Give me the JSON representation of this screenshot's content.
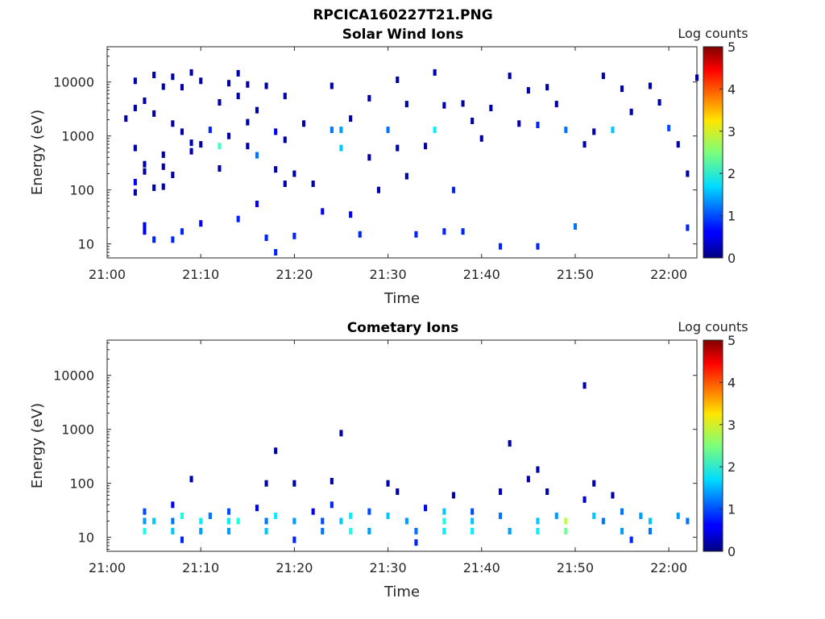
{
  "figure_title": "RPCICA160227T21.PNG",
  "colors": {
    "colormap": "jet",
    "background": "#ffffff",
    "axis": "#262626"
  },
  "chart_data": [
    {
      "type": "heatmap",
      "title": "Solar Wind Ions",
      "xlabel": "Time",
      "ylabel": "Energy (eV)",
      "yscale": "log",
      "xlim": [
        "21:00",
        "22:03"
      ],
      "ylim": [
        5.5,
        45000
      ],
      "x_ticks": [
        "21:00",
        "21:10",
        "21:20",
        "21:30",
        "21:40",
        "21:50",
        "22:00"
      ],
      "y_ticks": [
        "10",
        "100",
        "1000",
        "10000"
      ],
      "colorbar": {
        "label": "Log counts",
        "range": [
          0,
          5
        ],
        "ticks": [
          "0",
          "1",
          "2",
          "3",
          "4",
          "5"
        ]
      },
      "grid": false,
      "cells": [
        {
          "t": "21:02",
          "e": 2100,
          "v": 0.2
        },
        {
          "t": "21:03",
          "e": 10500,
          "v": 0.2
        },
        {
          "t": "21:03",
          "e": 3300,
          "v": 0.2
        },
        {
          "t": "21:03",
          "e": 600,
          "v": 0.2
        },
        {
          "t": "21:03",
          "e": 140,
          "v": 0.6
        },
        {
          "t": "21:03",
          "e": 90,
          "v": 0.2
        },
        {
          "t": "21:04",
          "e": 4500,
          "v": 0.2
        },
        {
          "t": "21:04",
          "e": 300,
          "v": 0.2
        },
        {
          "t": "21:04",
          "e": 220,
          "v": 0.2
        },
        {
          "t": "21:04",
          "e": 22,
          "v": 0.6
        },
        {
          "t": "21:04",
          "e": 17,
          "v": 0.6
        },
        {
          "t": "21:05",
          "e": 13500,
          "v": 0.2
        },
        {
          "t": "21:05",
          "e": 12,
          "v": 0.8
        },
        {
          "t": "21:05",
          "e": 2600,
          "v": 0.2
        },
        {
          "t": "21:05",
          "e": 110,
          "v": 0.2
        },
        {
          "t": "21:06",
          "e": 8200,
          "v": 0.2
        },
        {
          "t": "21:06",
          "e": 450,
          "v": 0.2
        },
        {
          "t": "21:06",
          "e": 270,
          "v": 0.2
        },
        {
          "t": "21:06",
          "e": 115,
          "v": 0.2
        },
        {
          "t": "21:07",
          "e": 12500,
          "v": 0.2
        },
        {
          "t": "21:07",
          "e": 1700,
          "v": 0.2
        },
        {
          "t": "21:07",
          "e": 190,
          "v": 0.2
        },
        {
          "t": "21:07",
          "e": 12,
          "v": 0.8
        },
        {
          "t": "21:08",
          "e": 8000,
          "v": 0.2
        },
        {
          "t": "21:08",
          "e": 1200,
          "v": 0.2
        },
        {
          "t": "21:08",
          "e": 17,
          "v": 0.8
        },
        {
          "t": "21:09",
          "e": 15000,
          "v": 0.2
        },
        {
          "t": "21:09",
          "e": 750,
          "v": 0.2
        },
        {
          "t": "21:09",
          "e": 520,
          "v": 0.2
        },
        {
          "t": "21:10",
          "e": 10500,
          "v": 0.2
        },
        {
          "t": "21:10",
          "e": 700,
          "v": 0.2
        },
        {
          "t": "21:10",
          "e": 24,
          "v": 0.6
        },
        {
          "t": "21:11",
          "e": 1300,
          "v": 0.8
        },
        {
          "t": "21:12",
          "e": 4200,
          "v": 0.2
        },
        {
          "t": "21:12",
          "e": 650,
          "v": 2.2
        },
        {
          "t": "21:12",
          "e": 250,
          "v": 0.2
        },
        {
          "t": "21:13",
          "e": 9500,
          "v": 0.2
        },
        {
          "t": "21:13",
          "e": 1000,
          "v": 0.2
        },
        {
          "t": "21:14",
          "e": 14500,
          "v": 0.2
        },
        {
          "t": "21:14",
          "e": 5500,
          "v": 0.2
        },
        {
          "t": "21:14",
          "e": 29,
          "v": 0.8
        },
        {
          "t": "21:15",
          "e": 1800,
          "v": 0.2
        },
        {
          "t": "21:15",
          "e": 9000,
          "v": 0.2
        },
        {
          "t": "21:15",
          "e": 650,
          "v": 0.2
        },
        {
          "t": "21:16",
          "e": 3000,
          "v": 0.2
        },
        {
          "t": "21:16",
          "e": 440,
          "v": 1.2
        },
        {
          "t": "21:16",
          "e": 55,
          "v": 0.6
        },
        {
          "t": "21:17",
          "e": 8500,
          "v": 0.2
        },
        {
          "t": "21:17",
          "e": 13,
          "v": 0.8
        },
        {
          "t": "21:18",
          "e": 1200,
          "v": 0.6
        },
        {
          "t": "21:18",
          "e": 7,
          "v": 0.8
        },
        {
          "t": "21:18",
          "e": 240,
          "v": 0.2
        },
        {
          "t": "21:19",
          "e": 5500,
          "v": 0.2
        },
        {
          "t": "21:19",
          "e": 850,
          "v": 0.2
        },
        {
          "t": "21:19",
          "e": 130,
          "v": 0.2
        },
        {
          "t": "21:20",
          "e": 14,
          "v": 0.8
        },
        {
          "t": "21:20",
          "e": 200,
          "v": 0.2
        },
        {
          "t": "21:21",
          "e": 1700,
          "v": 0.2
        },
        {
          "t": "21:22",
          "e": 130,
          "v": 0.2
        },
        {
          "t": "21:23",
          "e": 40,
          "v": 0.6
        },
        {
          "t": "21:24",
          "e": 1300,
          "v": 1.2
        },
        {
          "t": "21:24",
          "e": 8500,
          "v": 0.2
        },
        {
          "t": "21:25",
          "e": 1300,
          "v": 1.4
        },
        {
          "t": "21:25",
          "e": 600,
          "v": 1.6
        },
        {
          "t": "21:26",
          "e": 2100,
          "v": 0.2
        },
        {
          "t": "21:26",
          "e": 35,
          "v": 0.6
        },
        {
          "t": "21:27",
          "e": 15,
          "v": 0.8
        },
        {
          "t": "21:28",
          "e": 5000,
          "v": 0.2
        },
        {
          "t": "21:28",
          "e": 400,
          "v": 0.2
        },
        {
          "t": "21:29",
          "e": 100,
          "v": 0.2
        },
        {
          "t": "21:30",
          "e": 1300,
          "v": 1.2
        },
        {
          "t": "21:31",
          "e": 11000,
          "v": 0.2
        },
        {
          "t": "21:31",
          "e": 600,
          "v": 0.2
        },
        {
          "t": "21:32",
          "e": 3900,
          "v": 0.2
        },
        {
          "t": "21:32",
          "e": 180,
          "v": 0.2
        },
        {
          "t": "21:33",
          "e": 15,
          "v": 0.8
        },
        {
          "t": "21:34",
          "e": 650,
          "v": 0.2
        },
        {
          "t": "21:35",
          "e": 1300,
          "v": 1.8
        },
        {
          "t": "21:35",
          "e": 15000,
          "v": 0.2
        },
        {
          "t": "21:36",
          "e": 3700,
          "v": 0.2
        },
        {
          "t": "21:36",
          "e": 17,
          "v": 0.8
        },
        {
          "t": "21:37",
          "e": 100,
          "v": 0.8
        },
        {
          "t": "21:38",
          "e": 4000,
          "v": 0.2
        },
        {
          "t": "21:38",
          "e": 17,
          "v": 0.8
        },
        {
          "t": "21:39",
          "e": 1900,
          "v": 0.2
        },
        {
          "t": "21:40",
          "e": 900,
          "v": 0.2
        },
        {
          "t": "21:41",
          "e": 3300,
          "v": 0.2
        },
        {
          "t": "21:42",
          "e": 9,
          "v": 0.8
        },
        {
          "t": "21:43",
          "e": 13000,
          "v": 0.2
        },
        {
          "t": "21:44",
          "e": 1700,
          "v": 0.2
        },
        {
          "t": "21:45",
          "e": 7000,
          "v": 0.2
        },
        {
          "t": "21:46",
          "e": 1600,
          "v": 0.8
        },
        {
          "t": "21:46",
          "e": 9,
          "v": 0.8
        },
        {
          "t": "21:47",
          "e": 8000,
          "v": 0.2
        },
        {
          "t": "21:48",
          "e": 3900,
          "v": 0.2
        },
        {
          "t": "21:49",
          "e": 1300,
          "v": 1.2
        },
        {
          "t": "21:50",
          "e": 21,
          "v": 1.2
        },
        {
          "t": "21:51",
          "e": 700,
          "v": 0.2
        },
        {
          "t": "21:52",
          "e": 1200,
          "v": 0.2
        },
        {
          "t": "21:53",
          "e": 13000,
          "v": 0.2
        },
        {
          "t": "21:54",
          "e": 1300,
          "v": 1.6
        },
        {
          "t": "21:55",
          "e": 7500,
          "v": 0.2
        },
        {
          "t": "21:56",
          "e": 2800,
          "v": 0.2
        },
        {
          "t": "21:58",
          "e": 8500,
          "v": 0.2
        },
        {
          "t": "21:59",
          "e": 4200,
          "v": 0.2
        },
        {
          "t": "22:00",
          "e": 1400,
          "v": 1.0
        },
        {
          "t": "22:01",
          "e": 700,
          "v": 0.2
        },
        {
          "t": "22:02",
          "e": 200,
          "v": 0.2
        },
        {
          "t": "22:02",
          "e": 20,
          "v": 0.8
        },
        {
          "t": "22:03",
          "e": 12000,
          "v": 0.2
        }
      ]
    },
    {
      "type": "heatmap",
      "title": "Cometary Ions",
      "xlabel": "Time",
      "ylabel": "Energy (eV)",
      "yscale": "log",
      "xlim": [
        "21:00",
        "22:03"
      ],
      "ylim": [
        5.5,
        45000
      ],
      "x_ticks": [
        "21:00",
        "21:10",
        "21:20",
        "21:30",
        "21:40",
        "21:50",
        "22:00"
      ],
      "y_ticks": [
        "10",
        "100",
        "1000",
        "10000"
      ],
      "colorbar": {
        "label": "Log counts",
        "range": [
          0,
          5
        ],
        "ticks": [
          "0",
          "1",
          "2",
          "3",
          "4",
          "5"
        ]
      },
      "grid": false,
      "cells": [
        {
          "t": "21:04",
          "e": 30,
          "v": 1.0
        },
        {
          "t": "21:04",
          "e": 20,
          "v": 1.4
        },
        {
          "t": "21:04",
          "e": 13,
          "v": 2.0
        },
        {
          "t": "21:05",
          "e": 20,
          "v": 1.6
        },
        {
          "t": "21:07",
          "e": 40,
          "v": 0.6
        },
        {
          "t": "21:07",
          "e": 20,
          "v": 1.2
        },
        {
          "t": "21:07",
          "e": 13,
          "v": 1.6
        },
        {
          "t": "21:08",
          "e": 25,
          "v": 2.0
        },
        {
          "t": "21:08",
          "e": 9,
          "v": 0.8
        },
        {
          "t": "21:09",
          "e": 120,
          "v": 0.2
        },
        {
          "t": "21:10",
          "e": 20,
          "v": 1.8
        },
        {
          "t": "21:10",
          "e": 13,
          "v": 1.4
        },
        {
          "t": "21:11",
          "e": 25,
          "v": 1.2
        },
        {
          "t": "21:13",
          "e": 30,
          "v": 1.0
        },
        {
          "t": "21:13",
          "e": 20,
          "v": 1.8
        },
        {
          "t": "21:13",
          "e": 13,
          "v": 1.4
        },
        {
          "t": "21:14",
          "e": 20,
          "v": 2.0
        },
        {
          "t": "21:16",
          "e": 35,
          "v": 0.6
        },
        {
          "t": "21:17",
          "e": 20,
          "v": 1.2
        },
        {
          "t": "21:17",
          "e": 13,
          "v": 1.6
        },
        {
          "t": "21:17",
          "e": 100,
          "v": 0.2
        },
        {
          "t": "21:18",
          "e": 25,
          "v": 1.8
        },
        {
          "t": "21:18",
          "e": 400,
          "v": 0.2
        },
        {
          "t": "21:20",
          "e": 20,
          "v": 1.4
        },
        {
          "t": "21:20",
          "e": 100,
          "v": 0.2
        },
        {
          "t": "21:20",
          "e": 9,
          "v": 0.8
        },
        {
          "t": "21:22",
          "e": 30,
          "v": 0.6
        },
        {
          "t": "21:23",
          "e": 20,
          "v": 1.0
        },
        {
          "t": "21:23",
          "e": 13,
          "v": 1.2
        },
        {
          "t": "21:24",
          "e": 40,
          "v": 0.8
        },
        {
          "t": "21:24",
          "e": 110,
          "v": 0.2
        },
        {
          "t": "21:25",
          "e": 20,
          "v": 1.6
        },
        {
          "t": "21:25",
          "e": 850,
          "v": 0.2
        },
        {
          "t": "21:26",
          "e": 25,
          "v": 1.8
        },
        {
          "t": "21:26",
          "e": 13,
          "v": 2.0
        },
        {
          "t": "21:28",
          "e": 30,
          "v": 1.0
        },
        {
          "t": "21:28",
          "e": 13,
          "v": 1.4
        },
        {
          "t": "21:30",
          "e": 25,
          "v": 1.6
        },
        {
          "t": "21:30",
          "e": 100,
          "v": 0.2
        },
        {
          "t": "21:31",
          "e": 70,
          "v": 0.2
        },
        {
          "t": "21:32",
          "e": 20,
          "v": 1.4
        },
        {
          "t": "21:33",
          "e": 13,
          "v": 1.2
        },
        {
          "t": "21:33",
          "e": 8,
          "v": 0.8
        },
        {
          "t": "21:34",
          "e": 35,
          "v": 0.6
        },
        {
          "t": "21:36",
          "e": 30,
          "v": 1.6
        },
        {
          "t": "21:36",
          "e": 20,
          "v": 2.0
        },
        {
          "t": "21:36",
          "e": 13,
          "v": 1.8
        },
        {
          "t": "21:37",
          "e": 60,
          "v": 0.2
        },
        {
          "t": "21:39",
          "e": 30,
          "v": 1.0
        },
        {
          "t": "21:39",
          "e": 20,
          "v": 1.6
        },
        {
          "t": "21:39",
          "e": 13,
          "v": 1.8
        },
        {
          "t": "21:42",
          "e": 70,
          "v": 0.4
        },
        {
          "t": "21:42",
          "e": 25,
          "v": 1.2
        },
        {
          "t": "21:43",
          "e": 13,
          "v": 1.4
        },
        {
          "t": "21:43",
          "e": 550,
          "v": 0.2
        },
        {
          "t": "21:45",
          "e": 120,
          "v": 0.2
        },
        {
          "t": "21:46",
          "e": 180,
          "v": 0.2
        },
        {
          "t": "21:46",
          "e": 20,
          "v": 1.6
        },
        {
          "t": "21:46",
          "e": 13,
          "v": 1.8
        },
        {
          "t": "21:47",
          "e": 70,
          "v": 0.2
        },
        {
          "t": "21:48",
          "e": 25,
          "v": 1.4
        },
        {
          "t": "21:49",
          "e": 20,
          "v": 2.8
        },
        {
          "t": "21:49",
          "e": 13,
          "v": 2.4
        },
        {
          "t": "21:51",
          "e": 6500,
          "v": 0.2
        },
        {
          "t": "21:51",
          "e": 50,
          "v": 0.4
        },
        {
          "t": "21:52",
          "e": 100,
          "v": 0.2
        },
        {
          "t": "21:52",
          "e": 25,
          "v": 1.6
        },
        {
          "t": "21:53",
          "e": 20,
          "v": 1.2
        },
        {
          "t": "21:54",
          "e": 60,
          "v": 0.2
        },
        {
          "t": "21:55",
          "e": 30,
          "v": 1.2
        },
        {
          "t": "21:55",
          "e": 13,
          "v": 1.4
        },
        {
          "t": "21:56",
          "e": 9,
          "v": 0.8
        },
        {
          "t": "21:57",
          "e": 25,
          "v": 1.4
        },
        {
          "t": "21:58",
          "e": 20,
          "v": 1.6
        },
        {
          "t": "21:58",
          "e": 13,
          "v": 1.2
        },
        {
          "t": "22:01",
          "e": 25,
          "v": 1.4
        },
        {
          "t": "22:02",
          "e": 20,
          "v": 1.2
        }
      ]
    }
  ]
}
